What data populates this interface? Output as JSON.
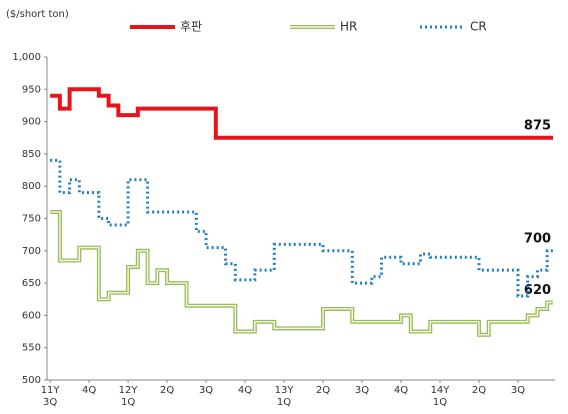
{
  "chart_data": {
    "type": "line",
    "y_label": "($/short ton)",
    "x": [
      0,
      0.25,
      0.5,
      0.75,
      1,
      1.25,
      1.5,
      1.75,
      2,
      2.25,
      2.5,
      2.75,
      3,
      3.25,
      3.5,
      3.75,
      4,
      4.25,
      4.5,
      4.75,
      5,
      5.25,
      5.5,
      5.75,
      6,
      6.25,
      6.5,
      6.75,
      7,
      7.25,
      7.5,
      7.75,
      8,
      8.25,
      8.5,
      8.75,
      9,
      9.25,
      9.5,
      9.75,
      10,
      10.25,
      10.5,
      10.75,
      11,
      11.25,
      11.5,
      11.75,
      12,
      12.25,
      12.5,
      12.75,
      12.9
    ],
    "series": [
      {
        "name": "후판",
        "color": "#e8141b",
        "style": "solid",
        "values": [
          940,
          920,
          950,
          950,
          950,
          940,
          925,
          910,
          910,
          920,
          920,
          920,
          920,
          920,
          920,
          920,
          920,
          875,
          875,
          875,
          875,
          875,
          875,
          875,
          875,
          875,
          875,
          875,
          875,
          875,
          875,
          875,
          875,
          875,
          875,
          875,
          875,
          875,
          875,
          875,
          875,
          875,
          875,
          875,
          875,
          875,
          875,
          875,
          875,
          875,
          875,
          875,
          875
        ]
      },
      {
        "name": "HR",
        "color": "#9bbb59",
        "style": "double",
        "values": [
          760,
          685,
          685,
          705,
          705,
          625,
          635,
          635,
          675,
          700,
          650,
          670,
          650,
          650,
          615,
          615,
          615,
          615,
          615,
          575,
          575,
          590,
          590,
          580,
          580,
          580,
          580,
          580,
          610,
          610,
          610,
          590,
          590,
          590,
          590,
          590,
          600,
          575,
          575,
          590,
          590,
          590,
          590,
          590,
          570,
          590,
          590,
          590,
          590,
          600,
          610,
          620,
          620
        ]
      },
      {
        "name": "CR",
        "color": "#1f7fc4",
        "style": "dotted",
        "values": [
          840,
          790,
          810,
          790,
          790,
          750,
          740,
          740,
          810,
          810,
          760,
          760,
          760,
          760,
          760,
          730,
          705,
          705,
          680,
          655,
          655,
          670,
          670,
          710,
          710,
          710,
          710,
          710,
          700,
          700,
          700,
          650,
          650,
          660,
          690,
          690,
          680,
          680,
          695,
          690,
          690,
          690,
          690,
          690,
          670,
          670,
          670,
          670,
          630,
          660,
          670,
          700,
          700
        ]
      }
    ],
    "xlim": [
      -0.08,
      12.95
    ],
    "xticks": [
      {
        "value": 0,
        "label": "11Y 3Q"
      },
      {
        "value": 1,
        "label": "4Q"
      },
      {
        "value": 2,
        "label": "12Y 1Q"
      },
      {
        "value": 3,
        "label": "2Q"
      },
      {
        "value": 4,
        "label": "3Q"
      },
      {
        "value": 5,
        "label": "4Q"
      },
      {
        "value": 6,
        "label": "13Y 1Q"
      },
      {
        "value": 7,
        "label": "2Q"
      },
      {
        "value": 8,
        "label": "3Q"
      },
      {
        "value": 9,
        "label": "4Q"
      },
      {
        "value": 10,
        "label": "14Y 1Q"
      },
      {
        "value": 11,
        "label": "2Q"
      },
      {
        "value": 12,
        "label": "3Q"
      }
    ],
    "ylim": [
      500,
      1000
    ],
    "yticks": [
      500,
      550,
      600,
      650,
      700,
      750,
      800,
      850,
      900,
      950,
      {
        "value": 1000,
        "label": "1,000"
      }
    ],
    "grid": false,
    "legend": "top"
  }
}
